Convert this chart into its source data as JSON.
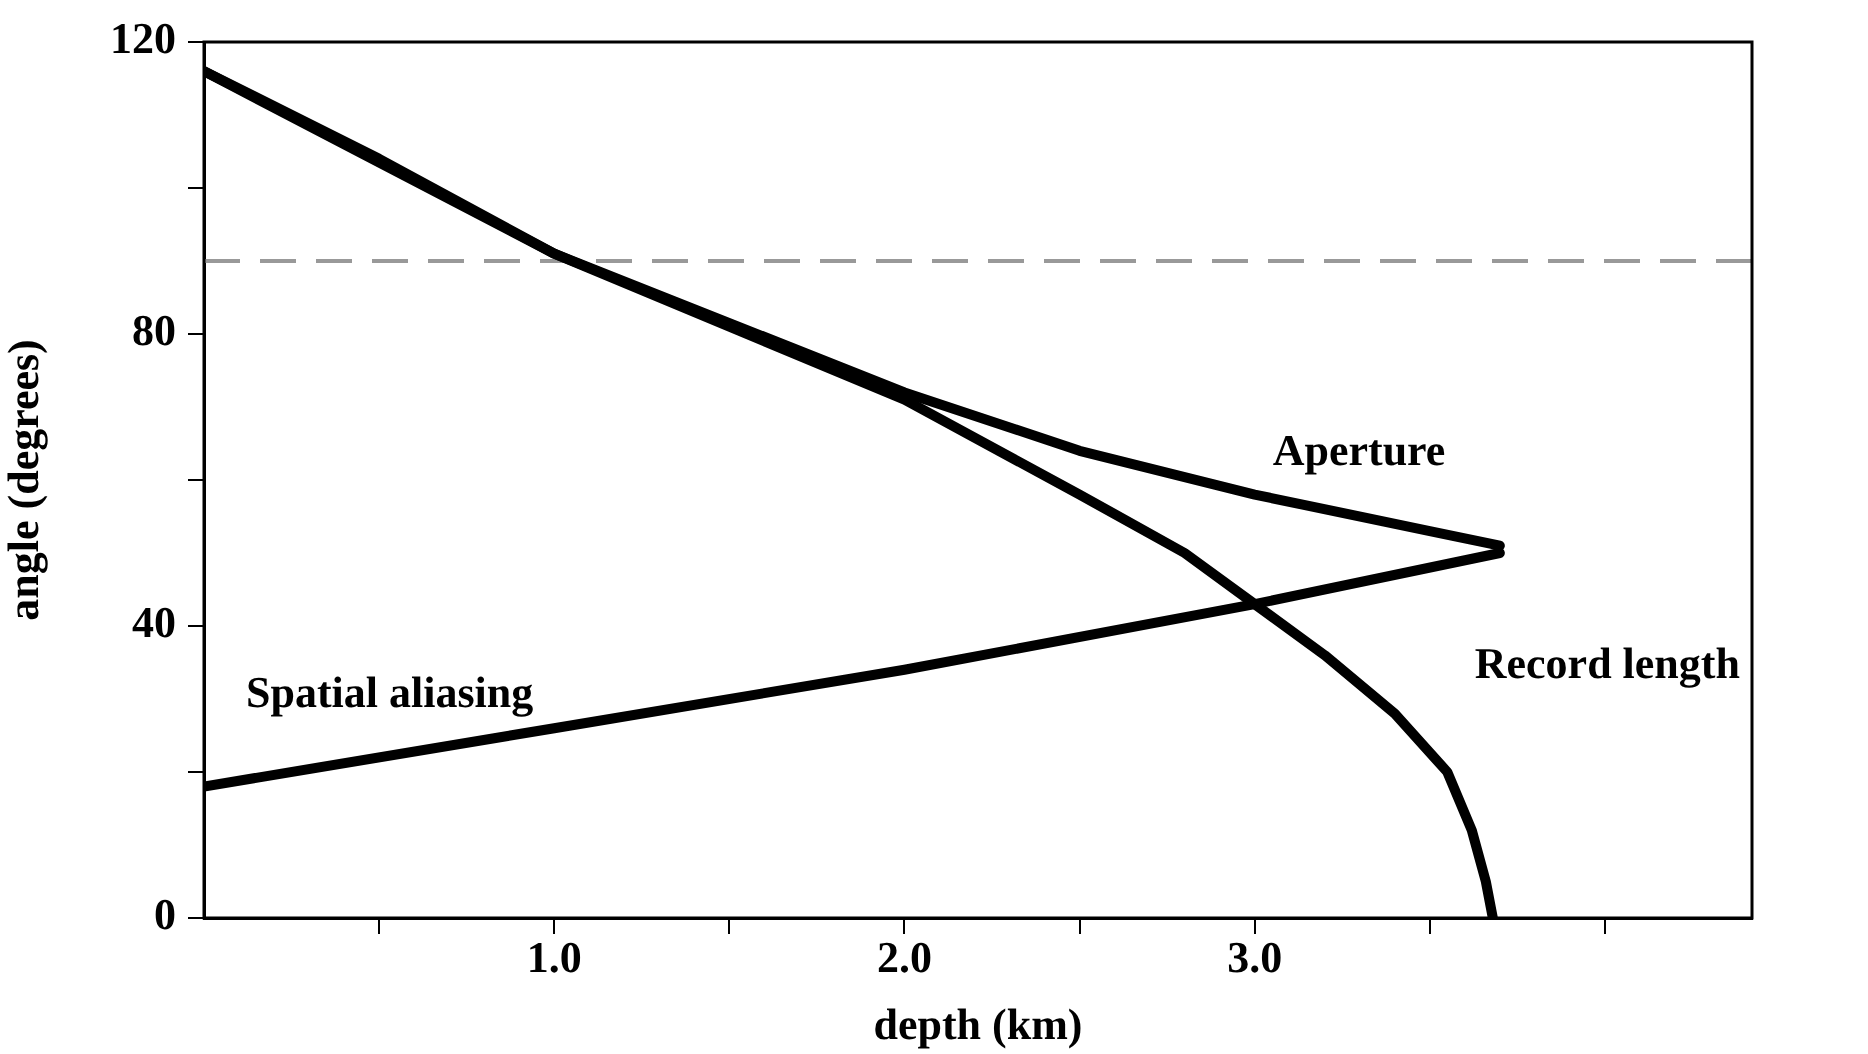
{
  "chart_data": {
    "type": "line",
    "xlabel": "depth (km)",
    "ylabel": "angle (degrees)",
    "xlim": [
      0,
      4.42
    ],
    "xticks": [
      {
        "value": 0.5,
        "label": null
      },
      {
        "value": 1.0,
        "label": "1.0"
      },
      {
        "value": 1.5,
        "label": null
      },
      {
        "value": 2.0,
        "label": "2.0"
      },
      {
        "value": 2.5,
        "label": null
      },
      {
        "value": 3.0,
        "label": "3.0"
      },
      {
        "value": 3.5,
        "label": null
      },
      {
        "value": 4.0,
        "label": null
      }
    ],
    "ylim": [
      0,
      120
    ],
    "yticks": [
      0,
      {
        "value": 20,
        "label": null
      },
      40,
      {
        "value": 60,
        "label": null
      },
      80,
      {
        "value": 100,
        "label": null
      },
      120
    ],
    "grid": false,
    "legend": false,
    "marker": "none",
    "line_style": "solid",
    "series": [
      {
        "name": "Record length",
        "color": "#000000",
        "x": [
          0,
          0.5,
          1.0,
          1.5,
          2.0,
          2.5,
          2.8,
          3.0,
          3.2,
          3.4,
          3.55,
          3.62,
          3.66,
          3.68
        ],
        "values": [
          116,
          104,
          91,
          81,
          71,
          58,
          50,
          43,
          36,
          28,
          20,
          12,
          5,
          0
        ]
      },
      {
        "name": "Aperture",
        "color": "#000000",
        "x": [
          0,
          1.0,
          2.0,
          2.5,
          3.0,
          3.5,
          3.7
        ],
        "values": [
          116,
          91,
          72,
          64,
          58,
          53,
          51
        ]
      },
      {
        "name": "Spatial aliasing",
        "color": "#000000",
        "x": [
          0,
          1.0,
          2.0,
          3.0,
          3.7
        ],
        "values": [
          18,
          26,
          34,
          43,
          50
        ]
      }
    ],
    "ref_lines": [
      {
        "axis": "y",
        "value": 90,
        "color": "#999999",
        "line_style": "dashed"
      }
    ]
  }
}
